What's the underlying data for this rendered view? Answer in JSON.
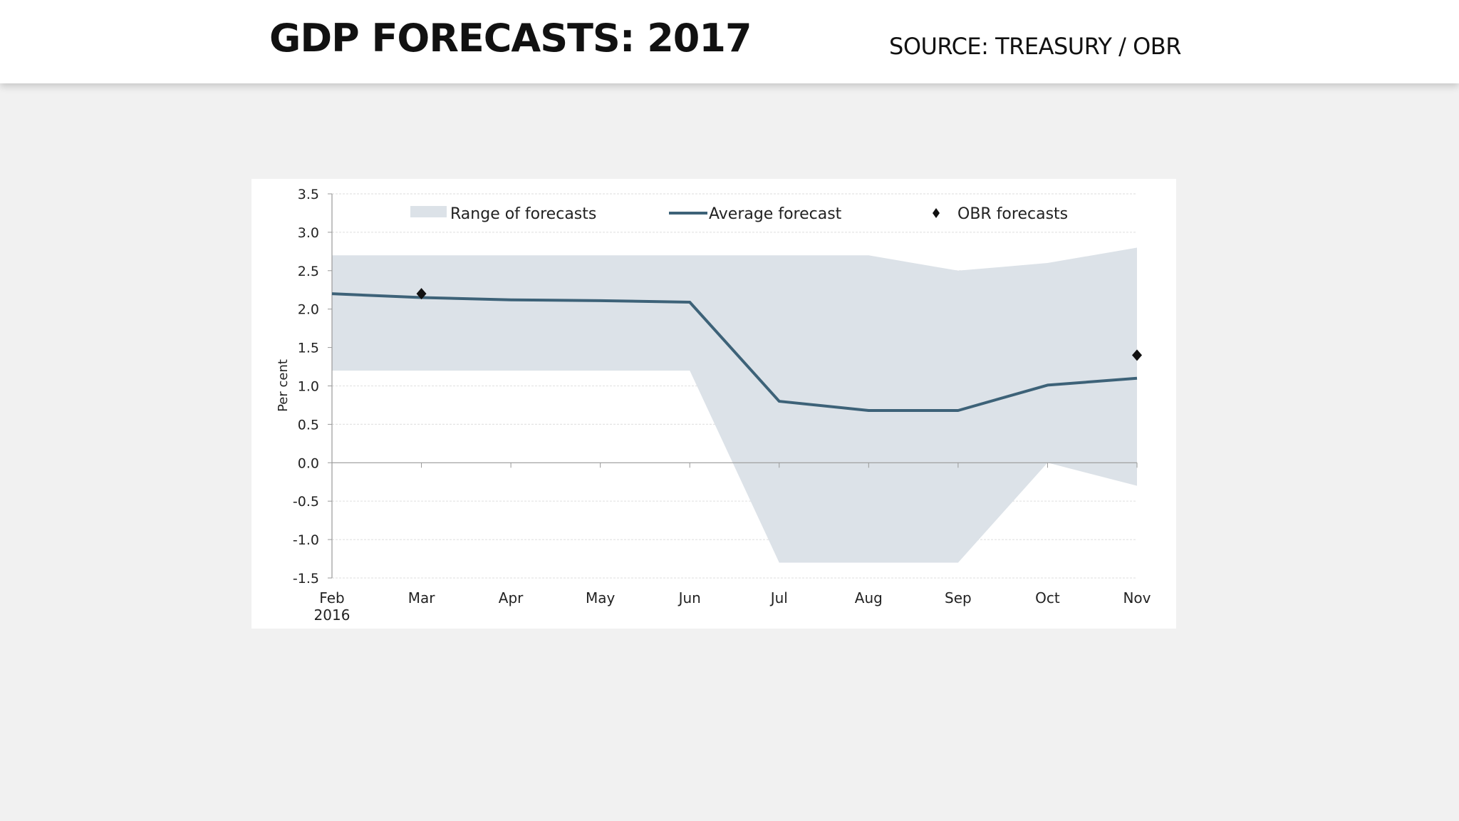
{
  "header": {
    "title": "GDP FORECASTS: 2017",
    "source": "SOURCE: TREASURY / OBR"
  },
  "chart_data": {
    "type": "line",
    "title": "",
    "xlabel": "",
    "ylabel": "Per cent",
    "categories": [
      "Feb",
      "Mar",
      "Apr",
      "May",
      "Jun",
      "Jul",
      "Aug",
      "Sep",
      "Oct",
      "Nov"
    ],
    "x_sublabel": {
      "Feb": "2016"
    },
    "ylim": [
      -1.5,
      3.5
    ],
    "yticks": [
      "3.5",
      "3.0",
      "2.5",
      "2.0",
      "1.5",
      "1.0",
      "0.5",
      "0.0",
      "-0.5",
      "-1.0",
      "-1.5"
    ],
    "grid": true,
    "legend_position": "top",
    "series": [
      {
        "name": "Range of forecasts",
        "kind": "band",
        "color": "#dce2e8",
        "upper": [
          2.7,
          2.7,
          2.7,
          2.7,
          2.7,
          2.7,
          2.7,
          2.5,
          2.6,
          2.8
        ],
        "lower": [
          1.2,
          1.2,
          1.2,
          1.2,
          1.2,
          -1.3,
          -1.3,
          -1.3,
          0.0,
          -0.3
        ]
      },
      {
        "name": "Average forecast",
        "kind": "line",
        "color": "#3d6278",
        "values": [
          2.2,
          2.15,
          2.12,
          2.11,
          2.09,
          0.8,
          0.68,
          0.68,
          1.01,
          1.1
        ]
      },
      {
        "name": "OBR forecasts",
        "kind": "points",
        "color": "#111111",
        "points": [
          {
            "x": "Mar",
            "y": 2.2
          },
          {
            "x": "Nov",
            "y": 1.4
          }
        ]
      }
    ]
  }
}
